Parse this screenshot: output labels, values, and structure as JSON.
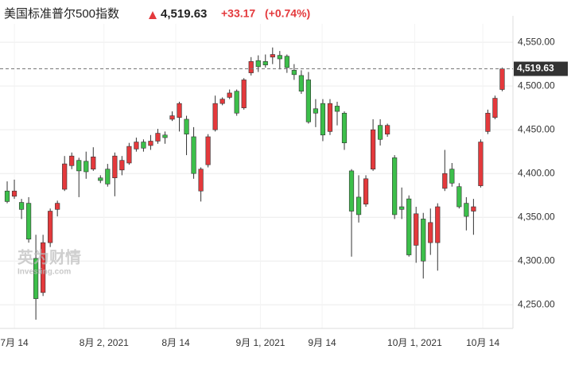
{
  "chart_data": {
    "type": "candlestick",
    "title": "美国标准普尔500指数",
    "price": "4,519.63",
    "change": "+33.17",
    "change_pct": "(+0.74%)",
    "watermark": [
      "英为财情",
      "Investing.com"
    ],
    "up_color": "#e4393c",
    "down_color": "#3cbf4a",
    "open": [
      4380,
      4374,
      4367,
      4366,
      4303,
      4264,
      4321,
      4359,
      4382,
      4409,
      4415,
      4414,
      4405,
      4395,
      4405,
      4395,
      4404,
      4412,
      4428,
      4436,
      4432,
      4437,
      4444,
      4462,
      4464,
      4462,
      4442,
      4380,
      4410,
      4450,
      4480,
      4487,
      4494,
      4475,
      4515,
      4529,
      4528,
      4533,
      4535,
      4534,
      4518,
      4512,
      4507,
      4474,
      4480,
      4448,
      4477,
      4469,
      4403,
      4373,
      4365,
      4405,
      4455,
      4445,
      4418,
      4362,
      4371,
      4318,
      4348,
      4321,
      4321,
      4383,
      4405,
      4385,
      4366,
      4357,
      4386,
      4448,
      4464,
      4496
    ],
    "high": [
      4391,
      4393,
      4371,
      4373,
      4330,
      4330,
      4360,
      4369,
      4420,
      4424,
      4418,
      4425,
      4430,
      4398,
      4411,
      4424,
      4420,
      4435,
      4441,
      4439,
      4444,
      4451,
      4448,
      4471,
      4482,
      4466,
      4453,
      4407,
      4445,
      4489,
      4487,
      4496,
      4496,
      4509,
      4533,
      4535,
      4536,
      4544,
      4540,
      4536,
      4525,
      4518,
      4516,
      4485,
      4485,
      4485,
      4482,
      4471,
      4405,
      4398,
      4398,
      4462,
      4462,
      4457,
      4421,
      4384,
      4375,
      4362,
      4355,
      4360,
      4366,
      4427,
      4412,
      4389,
      4373,
      4371,
      4439,
      4473,
      4489,
      4521
    ],
    "low": [
      4366,
      4371,
      4348,
      4321,
      4233,
      4260,
      4316,
      4351,
      4380,
      4405,
      4373,
      4394,
      4403,
      4389,
      4385,
      4374,
      4398,
      4410,
      4425,
      4425,
      4427,
      4434,
      4434,
      4460,
      4448,
      4421,
      4394,
      4368,
      4407,
      4448,
      4478,
      4485,
      4466,
      4473,
      4512,
      4516,
      4521,
      4525,
      4519,
      4515,
      4507,
      4491,
      4457,
      4453,
      4437,
      4444,
      4455,
      4427,
      4305,
      4344,
      4362,
      4403,
      4432,
      4442,
      4348,
      4348,
      4305,
      4298,
      4280,
      4307,
      4289,
      4380,
      4385,
      4360,
      4335,
      4330,
      4384,
      4445,
      4462,
      4494
    ],
    "close": [
      4368,
      4380,
      4359,
      4325,
      4257,
      4321,
      4357,
      4366,
      4411,
      4420,
      4403,
      4402,
      4419,
      4392,
      4388,
      4420,
      4415,
      4431,
      4436,
      4429,
      4437,
      4446,
      4441,
      4466,
      4480,
      4445,
      4400,
      4405,
      4442,
      4480,
      4485,
      4492,
      4469,
      4507,
      4528,
      4522,
      4524,
      4536,
      4531,
      4521,
      4513,
      4494,
      4459,
      4469,
      4444,
      4480,
      4471,
      4435,
      4357,
      4353,
      4394,
      4450,
      4439,
      4455,
      4353,
      4359,
      4307,
      4354,
      4300,
      4344,
      4362,
      4400,
      4389,
      4362,
      4351,
      4362,
      4436,
      4469,
      4486,
      4519.63
    ],
    "last_price": {
      "value": 4519.63,
      "label": "4,519.63"
    },
    "xlim": [
      -1,
      70.5
    ],
    "xticks": [
      {
        "value": 1,
        "label": "7月 14"
      },
      {
        "value": 13.5,
        "label": "8月 2, 2021"
      },
      {
        "value": 23.5,
        "label": "8月 14"
      },
      {
        "value": 35.3,
        "label": "9月 1, 2021"
      },
      {
        "value": 43.9,
        "label": "9月 14"
      },
      {
        "value": 56.8,
        "label": "10月 1, 2021"
      },
      {
        "value": 66.3,
        "label": "10月 14"
      }
    ],
    "ylim": [
      4223,
      4571
    ],
    "yticks": [
      {
        "value": 4250,
        "label": "4,250.00"
      },
      {
        "value": 4300,
        "label": "4,300.00"
      },
      {
        "value": 4350,
        "label": "4,350.00"
      },
      {
        "value": 4400,
        "label": "4,400.00"
      },
      {
        "value": 4450,
        "label": "4,450.00"
      },
      {
        "value": 4500,
        "label": "4,500.00"
      },
      {
        "value": 4550,
        "label": "4,550.00"
      }
    ],
    "grid": true
  }
}
